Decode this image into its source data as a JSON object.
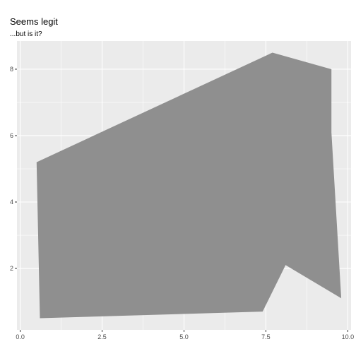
{
  "chart_data": {
    "type": "polygon",
    "title": "Seems legit",
    "subtitle": "...but is it?",
    "xlabel": "",
    "ylabel": "",
    "xlim": [
      -0.1,
      10.1
    ],
    "ylim": [
      0.15,
      8.85
    ],
    "x_ticks": [
      0.0,
      2.5,
      5.0,
      7.5,
      10.0
    ],
    "x_tick_labels": [
      "0.0",
      "2.5",
      "5.0",
      "7.5",
      "10.0"
    ],
    "y_ticks": [
      2,
      4,
      6,
      8
    ],
    "y_tick_labels": [
      "2",
      "4",
      "6",
      "8"
    ],
    "grid": true,
    "panel_background": "#ebebeb",
    "grid_color": "#ffffff",
    "fill_color": "#8f8f8f",
    "polygon": {
      "x": [
        0.5,
        0.6,
        7.4,
        8.1,
        9.8,
        9.5,
        9.5,
        7.7
      ],
      "y": [
        5.2,
        0.5,
        0.7,
        2.1,
        1.1,
        6.1,
        8.0,
        8.5
      ]
    }
  }
}
